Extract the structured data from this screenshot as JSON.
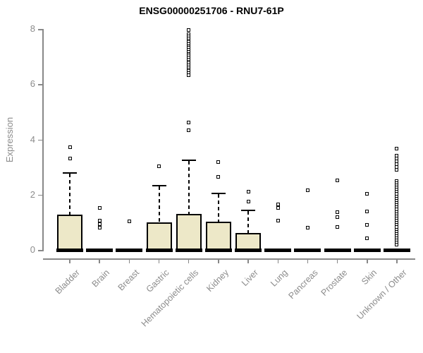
{
  "chart_data": {
    "type": "boxplot",
    "title": "ENSG00000251706 - RNU7-61P",
    "xlabel": "",
    "ylabel": "Expression",
    "ylim": [
      0,
      8
    ],
    "yticks": [
      0,
      2,
      4,
      6,
      8
    ],
    "grid": false,
    "legend": "none",
    "colors": {
      "box_fill": "#ede8c8",
      "box_border": "#000000",
      "median": "#000000",
      "axis": "#888888",
      "tick_label": "#8c8c8c",
      "title": "#000000"
    },
    "outlier_marker": "open-square",
    "categories": [
      "Bladder",
      "Brain",
      "Breast",
      "Gastric",
      "Hematopoietic cells",
      "Kidney",
      "Liver",
      "Lung",
      "Pancreas",
      "Prostate",
      "Skin",
      "Unknown / Other"
    ],
    "boxes": [
      {
        "category": "Bladder",
        "whisker_low": 0,
        "q1": 0,
        "median": 0,
        "q3": 1.28,
        "whisker_high": 2.8,
        "outliers": [
          3.73,
          3.3
        ]
      },
      {
        "category": "Brain",
        "whisker_low": 0,
        "q1": 0,
        "median": 0,
        "q3": 0,
        "whisker_high": 0,
        "outliers": [
          1.53,
          1.05,
          0.93,
          0.8
        ]
      },
      {
        "category": "Breast",
        "whisker_low": 0,
        "q1": 0,
        "median": 0,
        "q3": 0,
        "whisker_high": 0,
        "outliers": [
          1.04
        ]
      },
      {
        "category": "Gastric",
        "whisker_low": 0,
        "q1": 0,
        "median": 0,
        "q3": 1.0,
        "whisker_high": 2.34,
        "outliers": [
          3.04
        ]
      },
      {
        "category": "Hematopoietic cells",
        "whisker_low": 0,
        "q1": 0,
        "median": 0,
        "q3": 1.3,
        "whisker_high": 3.26,
        "outliers": [
          7.97,
          7.8,
          7.73,
          7.66,
          7.59,
          7.52,
          7.45,
          7.38,
          7.31,
          7.24,
          7.17,
          7.1,
          7.03,
          6.96,
          6.89,
          6.82,
          6.75,
          6.68,
          6.61,
          6.54,
          6.47,
          6.4,
          6.33,
          4.62,
          4.34
        ]
      },
      {
        "category": "Kidney",
        "whisker_low": 0,
        "q1": 0,
        "median": 0,
        "q3": 1.03,
        "whisker_high": 2.08,
        "outliers": [
          3.19,
          2.64
        ]
      },
      {
        "category": "Liver",
        "whisker_low": 0,
        "q1": 0,
        "median": 0,
        "q3": 0.61,
        "whisker_high": 1.45,
        "outliers": [
          2.1,
          1.76
        ]
      },
      {
        "category": "Lung",
        "whisker_low": 0,
        "q1": 0,
        "median": 0,
        "q3": 0,
        "whisker_high": 0,
        "outliers": [
          1.66,
          1.52,
          1.07
        ]
      },
      {
        "category": "Pancreas",
        "whisker_low": 0,
        "q1": 0,
        "median": 0,
        "q3": 0,
        "whisker_high": 0,
        "outliers": [
          2.17,
          0.8
        ]
      },
      {
        "category": "Prostate",
        "whisker_low": 0,
        "q1": 0,
        "median": 0,
        "q3": 0,
        "whisker_high": 0,
        "outliers": [
          2.53,
          1.36,
          1.19,
          0.84
        ]
      },
      {
        "category": "Skin",
        "whisker_low": 0,
        "q1": 0,
        "median": 0,
        "q3": 0,
        "whisker_high": 0,
        "outliers": [
          2.02,
          1.4,
          0.91,
          0.42
        ]
      },
      {
        "category": "Unknown / Other",
        "whisker_low": 0,
        "q1": 0,
        "median": 0,
        "q3": 0,
        "whisker_high": 0,
        "outliers": [
          3.66,
          3.4,
          3.3,
          3.2,
          3.1,
          3.0,
          2.9,
          2.5,
          2.42,
          2.34,
          2.26,
          2.18,
          2.1,
          2.02,
          1.94,
          1.86,
          1.78,
          1.7,
          1.62,
          1.54,
          1.46,
          1.38,
          1.3,
          1.22,
          1.14,
          1.06,
          0.98,
          0.9,
          0.82,
          0.74,
          0.66,
          0.58,
          0.5,
          0.42,
          0.34,
          0.26,
          0.18
        ]
      }
    ]
  }
}
